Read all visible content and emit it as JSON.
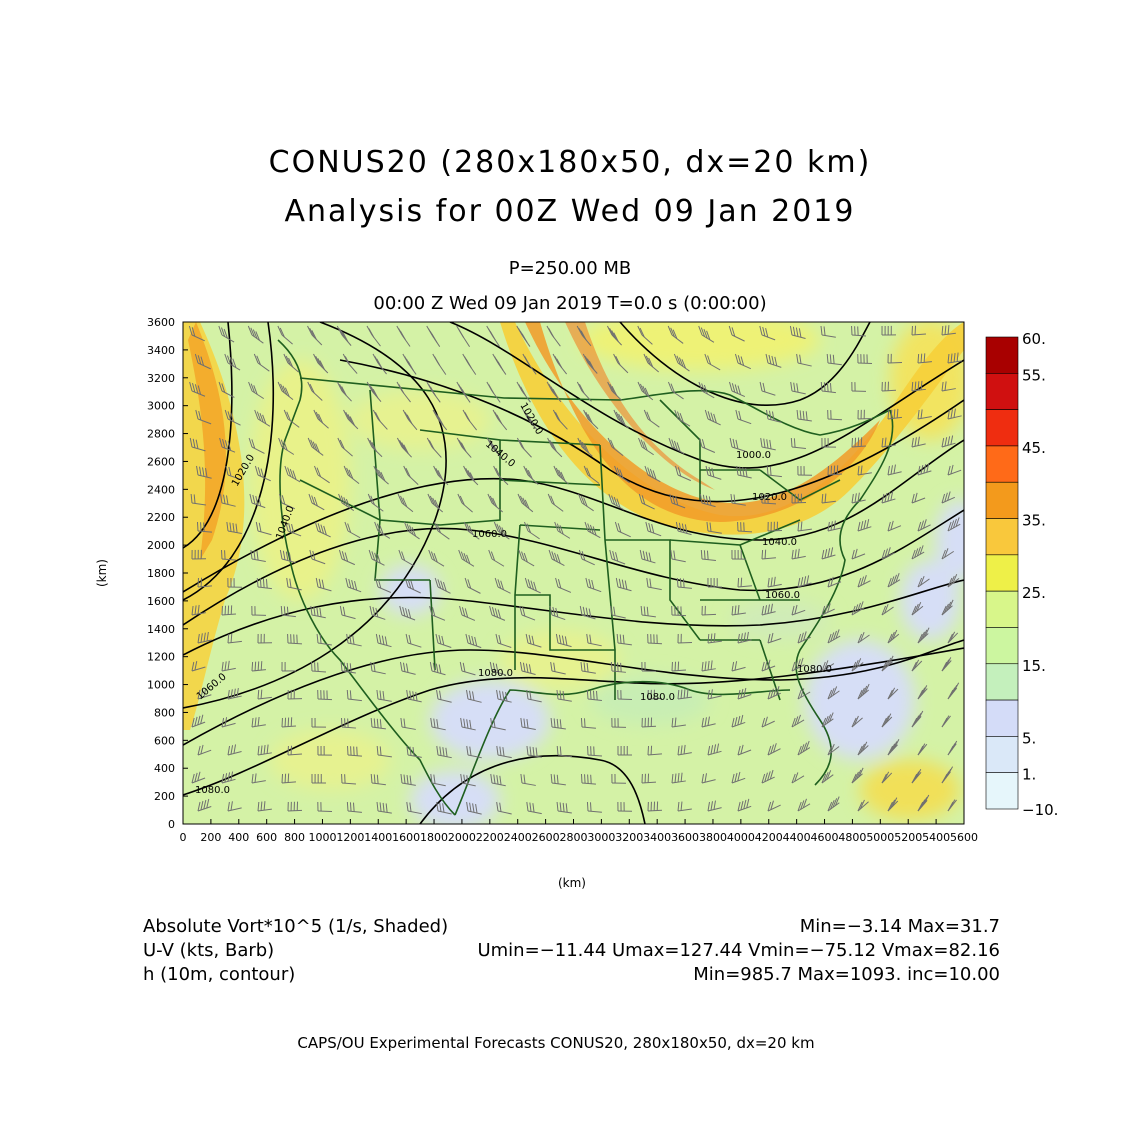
{
  "title": {
    "line1": "CONUS20 (280x180x50, dx=20 km)",
    "line2": "Analysis for 00Z Wed 09 Jan 2019",
    "level": "P=250.00 MB",
    "time": "00:00 Z Wed 09 Jan 2019    T=0.0 s (0:00:00)"
  },
  "map": {
    "x_axis": {
      "label": "(km)",
      "ticks": [
        0,
        200,
        400,
        600,
        800,
        1000,
        1200,
        1400,
        1600,
        1800,
        2000,
        2200,
        2400,
        2600,
        2800,
        3000,
        3200,
        3400,
        3600,
        3800,
        4000,
        4200,
        4400,
        4600,
        4800,
        5000,
        5200,
        5400,
        5600
      ],
      "range": [
        0,
        5600
      ]
    },
    "y_axis": {
      "label": "(km)",
      "ticks": [
        0,
        200,
        400,
        600,
        800,
        1000,
        1200,
        1400,
        1600,
        1800,
        2000,
        2200,
        2400,
        2600,
        2800,
        3000,
        3200,
        3400,
        3600
      ],
      "range": [
        0,
        3600
      ]
    },
    "contour_labels": [
      "1020.0",
      "1040.0",
      "1060.0",
      "1020.0",
      "1040.0",
      "1060.0",
      "1000.0",
      "1020.0",
      "1040.0",
      "1060.0",
      "1080.0",
      "1080.0",
      "1080.0",
      "1080.0"
    ],
    "colors": {
      "land_border": "#1f5f1f",
      "contour": "#000000",
      "barb": "#707070"
    }
  },
  "colorbar": {
    "labels": [
      "60.",
      "55.",
      "45.",
      "35.",
      "25.",
      "15.",
      "5.",
      "1.",
      "−10."
    ],
    "colors": [
      "#a80000",
      "#d01010",
      "#ef2d10",
      "#ff6a18",
      "#f39a1c",
      "#f9c83c",
      "#eef048",
      "#d8f68a",
      "#ccf6a0",
      "#c4f0bc",
      "#d4dcf8",
      "#dae8f8",
      "#e6f6fb"
    ]
  },
  "info": {
    "field1": "Absolute Vort*10^5 (1/s, Shaded)",
    "stats1": "Min=−3.14 Max=31.7",
    "field2": "U-V (kts, Barb)",
    "stats2": "Umin=−11.44 Umax=127.44 Vmin=−75.12 Vmax=82.16",
    "field3": "h (10m, contour)",
    "stats3": "Min=985.7 Max=1093. inc=10.00"
  },
  "footer": "CAPS/OU Experimental Forecasts   CONUS20, 280x180x50, dx=20 km"
}
